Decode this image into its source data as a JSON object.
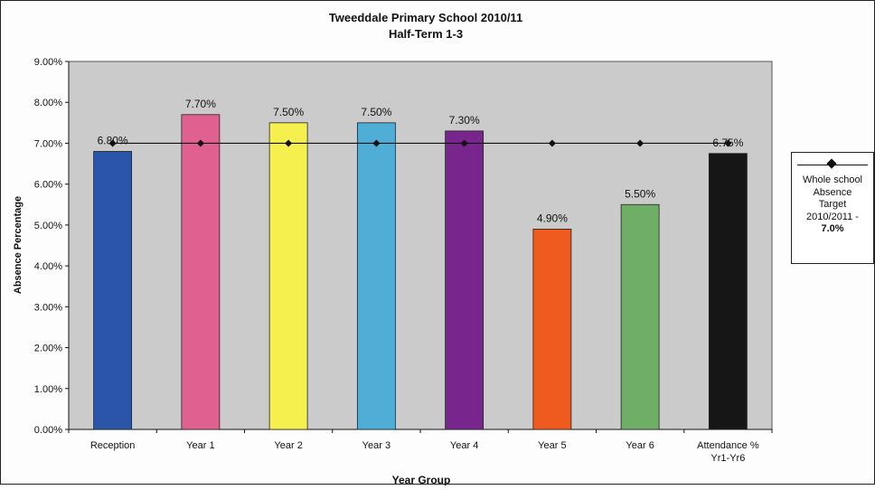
{
  "chart_data": {
    "type": "bar",
    "title": "Tweeddale Primary School 2010/11",
    "subtitle": "Half-Term 1-3",
    "xlabel": "Year Group",
    "ylabel": "Absence Percentage",
    "ylim": [
      0,
      9
    ],
    "yticks": [
      "0.00%",
      "1.00%",
      "2.00%",
      "3.00%",
      "4.00%",
      "5.00%",
      "6.00%",
      "7.00%",
      "8.00%",
      "9.00%"
    ],
    "categories": [
      "Reception",
      "Year 1",
      "Year 2",
      "Year 3",
      "Year 4",
      "Year 5",
      "Year 6",
      "Attendance %\nYr1-Yr6"
    ],
    "series": [
      {
        "values": [
          6.8,
          7.7,
          7.5,
          7.5,
          7.3,
          4.9,
          5.5,
          6.75
        ],
        "data_labels": [
          "6.80%",
          "7.70%",
          "7.50%",
          "7.50%",
          "7.30%",
          "4.90%",
          "5.50%",
          "6.75%"
        ],
        "colors": [
          "#2b55a8",
          "#e0608f",
          "#f6f04e",
          "#4fadd6",
          "#78268e",
          "#ef5a1e",
          "#6fae66",
          "#161616"
        ]
      },
      {
        "name": "Whole school Absence Target 2010/2011 -",
        "type": "line",
        "marker": "diamond",
        "values": [
          7.0,
          7.0,
          7.0,
          7.0,
          7.0,
          7.0,
          7.0,
          7.0
        ],
        "color": "#111111"
      }
    ],
    "legend": {
      "position": "right",
      "label": "Whole school\nAbsence\nTarget\n2010/2011 -",
      "value_label": "7.0%"
    },
    "grid": false,
    "plot_background": "#cbcbcb"
  }
}
